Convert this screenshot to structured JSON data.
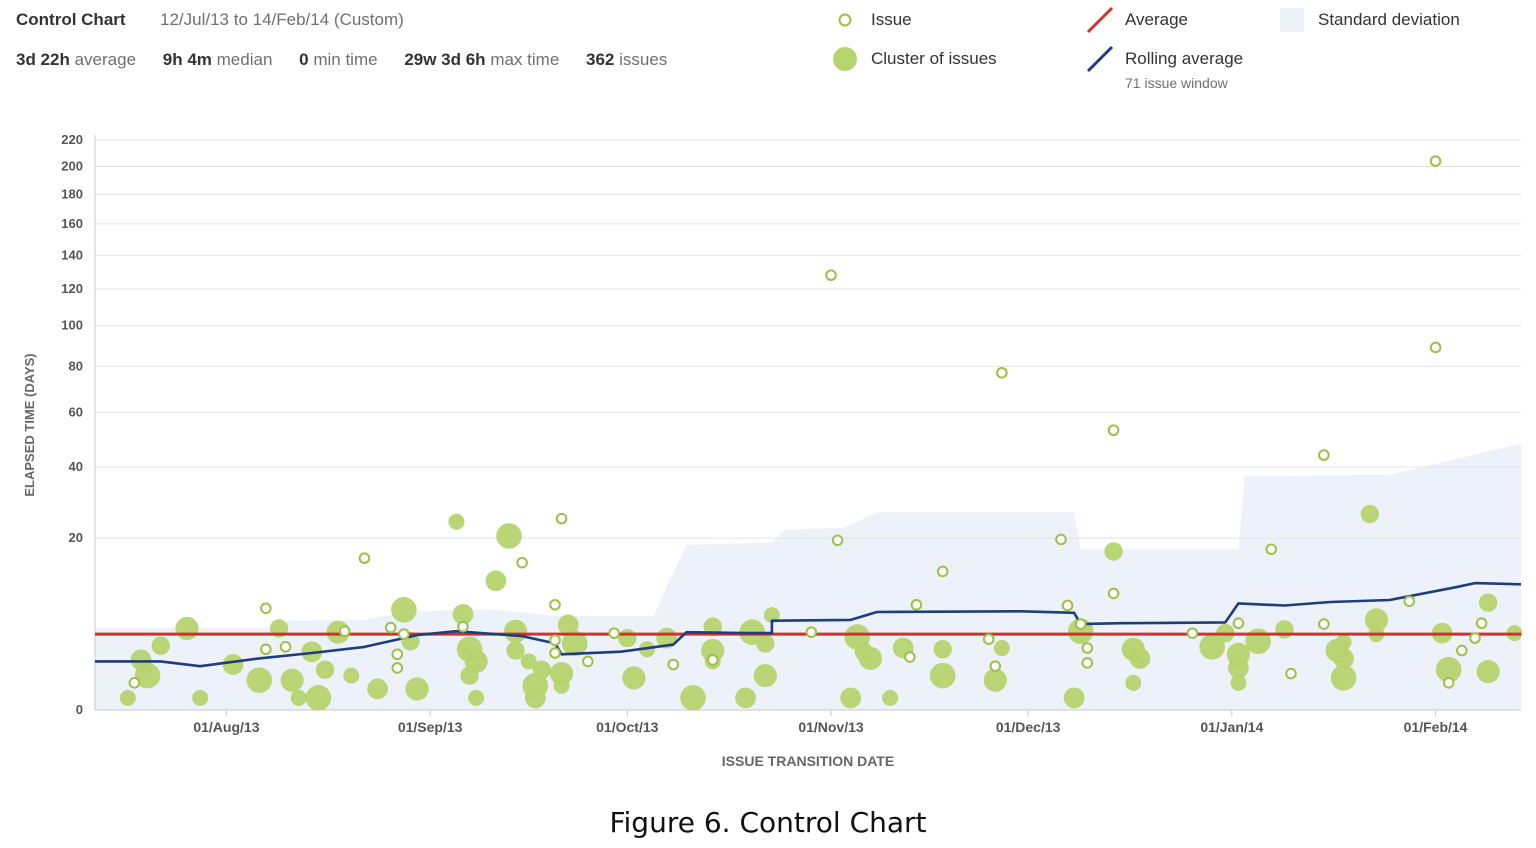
{
  "header": {
    "title": "Control Chart",
    "range": "12/Jul/13 to 14/Feb/14 (Custom)",
    "stats": [
      {
        "value": "3d 22h",
        "label": "average"
      },
      {
        "value": "9h 4m",
        "label": "median"
      },
      {
        "value": "0",
        "label": "min time"
      },
      {
        "value": "29w 3d 6h",
        "label": "max time"
      },
      {
        "value": "362",
        "label": "issues"
      }
    ]
  },
  "legend": {
    "issue": "Issue",
    "cluster": "Cluster of issues",
    "average": "Average",
    "rolling": "Rolling average",
    "rolling_sub": "71 issue window",
    "stddev": "Standard deviation"
  },
  "colors": {
    "issue": "#9cc04a",
    "cluster": "#b6d36e",
    "average": "#d0312d",
    "rolling": "#1f3d7a",
    "stddev": "#edf2fa"
  },
  "caption": "Figure 6. Control Chart",
  "chart_data": {
    "type": "scatter",
    "title": "",
    "xlabel": "ISSUE TRANSITION DATE",
    "ylabel": "ELAPSED TIME (DAYS)",
    "x_range": [
      "2013-07-12",
      "2014-02-14"
    ],
    "x_ticks": [
      {
        "date": "2013-08-01",
        "label": "01/Aug/13"
      },
      {
        "date": "2013-09-01",
        "label": "01/Sep/13"
      },
      {
        "date": "2013-10-01",
        "label": "01/Oct/13"
      },
      {
        "date": "2013-11-01",
        "label": "01/Nov/13"
      },
      {
        "date": "2013-12-01",
        "label": "01/Dec/13"
      },
      {
        "date": "2014-01-01",
        "label": "01/Jan/14"
      },
      {
        "date": "2014-02-01",
        "label": "01/Feb/14"
      }
    ],
    "y_scale": "sqrt",
    "y_ticks": [
      0,
      20,
      40,
      60,
      80,
      100,
      120,
      140,
      160,
      180,
      200,
      220
    ],
    "y_range": [
      0,
      220
    ],
    "average": 3.9,
    "rolling_average": [
      {
        "x": "2013-07-12",
        "y": 1.6
      },
      {
        "x": "2013-07-22",
        "y": 1.6
      },
      {
        "x": "2013-07-28",
        "y": 1.3
      },
      {
        "x": "2013-08-06",
        "y": 1.8
      },
      {
        "x": "2013-08-14",
        "y": 2.2
      },
      {
        "x": "2013-08-22",
        "y": 2.7
      },
      {
        "x": "2013-08-30",
        "y": 3.8
      },
      {
        "x": "2013-09-05",
        "y": 4.2
      },
      {
        "x": "2013-09-15",
        "y": 3.7
      },
      {
        "x": "2013-09-20",
        "y": 3.0
      },
      {
        "x": "2013-09-21",
        "y": 2.1
      },
      {
        "x": "2013-09-30",
        "y": 2.3
      },
      {
        "x": "2013-10-08",
        "y": 2.9
      },
      {
        "x": "2013-10-10",
        "y": 4.1
      },
      {
        "x": "2013-10-19",
        "y": 4.0
      },
      {
        "x": "2013-10-23",
        "y": 4.0
      },
      {
        "x": "2013-10-23",
        "y": 5.4
      },
      {
        "x": "2013-11-04",
        "y": 5.5
      },
      {
        "x": "2013-11-08",
        "y": 6.5
      },
      {
        "x": "2013-11-30",
        "y": 6.6
      },
      {
        "x": "2013-12-08",
        "y": 6.4
      },
      {
        "x": "2013-12-09",
        "y": 5.0
      },
      {
        "x": "2013-12-15",
        "y": 5.1
      },
      {
        "x": "2013-12-31",
        "y": 5.2
      },
      {
        "x": "2014-01-02",
        "y": 7.7
      },
      {
        "x": "2014-01-09",
        "y": 7.4
      },
      {
        "x": "2014-01-16",
        "y": 7.9
      },
      {
        "x": "2014-01-25",
        "y": 8.2
      },
      {
        "x": "2014-02-04",
        "y": 10.2
      },
      {
        "x": "2014-02-07",
        "y": 10.9
      },
      {
        "x": "2014-02-14",
        "y": 10.7
      }
    ],
    "std_band_upper": [
      {
        "x": "2013-07-12",
        "y": 4.6
      },
      {
        "x": "2013-08-09",
        "y": 4.6
      },
      {
        "x": "2013-08-10",
        "y": 5.4
      },
      {
        "x": "2013-08-22",
        "y": 5.5
      },
      {
        "x": "2013-08-28",
        "y": 6.5
      },
      {
        "x": "2013-09-10",
        "y": 6.9
      },
      {
        "x": "2013-09-20",
        "y": 6.0
      },
      {
        "x": "2013-10-05",
        "y": 6.0
      },
      {
        "x": "2013-10-10",
        "y": 18.5
      },
      {
        "x": "2013-10-23",
        "y": 19.0
      },
      {
        "x": "2013-10-25",
        "y": 22.0
      },
      {
        "x": "2013-11-03",
        "y": 22.5
      },
      {
        "x": "2013-11-08",
        "y": 26.5
      },
      {
        "x": "2013-12-08",
        "y": 26.5
      },
      {
        "x": "2013-12-09",
        "y": 17.5
      },
      {
        "x": "2014-01-02",
        "y": 17.5
      },
      {
        "x": "2014-01-03",
        "y": 37.0
      },
      {
        "x": "2014-01-25",
        "y": 37.5
      },
      {
        "x": "2014-02-14",
        "y": 48.0
      }
    ],
    "issues": [
      {
        "x": "2013-07-18",
        "y": 0.5
      },
      {
        "x": "2013-08-07",
        "y": 7.0
      },
      {
        "x": "2013-08-07",
        "y": 2.5
      },
      {
        "x": "2013-08-10",
        "y": 2.7
      },
      {
        "x": "2013-08-19",
        "y": 4.2
      },
      {
        "x": "2013-08-22",
        "y": 15.6
      },
      {
        "x": "2013-08-26",
        "y": 4.6
      },
      {
        "x": "2013-08-27",
        "y": 2.1
      },
      {
        "x": "2013-08-27",
        "y": 1.2
      },
      {
        "x": "2013-08-28",
        "y": 3.9
      },
      {
        "x": "2013-09-06",
        "y": 4.7
      },
      {
        "x": "2013-09-15",
        "y": 14.7
      },
      {
        "x": "2013-09-20",
        "y": 3.3
      },
      {
        "x": "2013-09-20",
        "y": 7.5
      },
      {
        "x": "2013-09-20",
        "y": 2.2
      },
      {
        "x": "2013-09-21",
        "y": 24.8
      },
      {
        "x": "2013-09-25",
        "y": 1.6
      },
      {
        "x": "2013-09-29",
        "y": 4.0
      },
      {
        "x": "2013-10-08",
        "y": 1.4
      },
      {
        "x": "2013-10-14",
        "y": 1.7
      },
      {
        "x": "2013-10-29",
        "y": 4.1
      },
      {
        "x": "2013-11-02",
        "y": 19.5
      },
      {
        "x": "2013-11-01",
        "y": 128.0
      },
      {
        "x": "2013-11-14",
        "y": 7.5
      },
      {
        "x": "2013-11-18",
        "y": 13.0
      },
      {
        "x": "2013-11-13",
        "y": 1.9
      },
      {
        "x": "2013-11-25",
        "y": 3.4
      },
      {
        "x": "2013-11-26",
        "y": 1.3
      },
      {
        "x": "2013-11-27",
        "y": 77.0
      },
      {
        "x": "2013-12-06",
        "y": 19.7
      },
      {
        "x": "2013-12-07",
        "y": 7.4
      },
      {
        "x": "2013-12-09",
        "y": 5.0
      },
      {
        "x": "2013-12-10",
        "y": 2.6
      },
      {
        "x": "2013-12-10",
        "y": 1.5
      },
      {
        "x": "2013-12-14",
        "y": 9.2
      },
      {
        "x": "2013-12-14",
        "y": 53.0
      },
      {
        "x": "2013-12-26",
        "y": 4.0
      },
      {
        "x": "2014-01-02",
        "y": 5.1
      },
      {
        "x": "2014-01-07",
        "y": 17.5
      },
      {
        "x": "2014-01-10",
        "y": 0.9
      },
      {
        "x": "2014-01-15",
        "y": 5.0
      },
      {
        "x": "2014-01-15",
        "y": 44.0
      },
      {
        "x": "2014-01-28",
        "y": 8.0
      },
      {
        "x": "2014-02-01",
        "y": 204.0
      },
      {
        "x": "2014-02-01",
        "y": 89.0
      },
      {
        "x": "2014-02-03",
        "y": 0.5
      },
      {
        "x": "2014-02-05",
        "y": 2.4
      },
      {
        "x": "2014-02-07",
        "y": 3.5
      },
      {
        "x": "2014-02-08",
        "y": 5.1
      }
    ],
    "clusters": [
      {
        "x": "2013-07-17",
        "y": 0.1
      },
      {
        "x": "2013-07-19",
        "y": 1.7
      },
      {
        "x": "2013-07-20",
        "y": 0.8
      },
      {
        "x": "2013-07-22",
        "y": 2.8
      },
      {
        "x": "2013-07-26",
        "y": 4.5
      },
      {
        "x": "2013-07-28",
        "y": 0.1
      },
      {
        "x": "2013-08-02",
        "y": 1.4
      },
      {
        "x": "2013-08-06",
        "y": 0.6
      },
      {
        "x": "2013-08-09",
        "y": 4.5
      },
      {
        "x": "2013-08-11",
        "y": 0.6
      },
      {
        "x": "2013-08-12",
        "y": 0.1
      },
      {
        "x": "2013-08-14",
        "y": 2.3
      },
      {
        "x": "2013-08-15",
        "y": 0.1
      },
      {
        "x": "2013-08-16",
        "y": 1.1
      },
      {
        "x": "2013-08-18",
        "y": 4.1
      },
      {
        "x": "2013-08-20",
        "y": 0.8
      },
      {
        "x": "2013-08-24",
        "y": 0.3
      },
      {
        "x": "2013-08-28",
        "y": 6.8
      },
      {
        "x": "2013-08-29",
        "y": 3.2
      },
      {
        "x": "2013-08-30",
        "y": 0.3
      },
      {
        "x": "2013-09-05",
        "y": 24.0
      },
      {
        "x": "2013-09-06",
        "y": 6.2
      },
      {
        "x": "2013-09-07",
        "y": 2.5
      },
      {
        "x": "2013-09-07",
        "y": 0.8
      },
      {
        "x": "2013-09-08",
        "y": 1.6
      },
      {
        "x": "2013-09-08",
        "y": 0.1
      },
      {
        "x": "2013-09-11",
        "y": 11.3
      },
      {
        "x": "2013-09-13",
        "y": 20.5
      },
      {
        "x": "2013-09-14",
        "y": 2.4
      },
      {
        "x": "2013-09-14",
        "y": 4.2
      },
      {
        "x": "2013-09-16",
        "y": 1.6
      },
      {
        "x": "2013-09-17",
        "y": 0.1
      },
      {
        "x": "2013-09-17",
        "y": 0.4
      },
      {
        "x": "2013-09-18",
        "y": 1.1
      },
      {
        "x": "2013-09-21",
        "y": 0.9
      },
      {
        "x": "2013-09-21",
        "y": 0.4
      },
      {
        "x": "2013-09-22",
        "y": 4.9
      },
      {
        "x": "2013-09-23",
        "y": 3.0
      },
      {
        "x": "2013-10-01",
        "y": 3.5
      },
      {
        "x": "2013-10-02",
        "y": 0.7
      },
      {
        "x": "2013-10-04",
        "y": 2.5
      },
      {
        "x": "2013-10-07",
        "y": 3.5
      },
      {
        "x": "2013-10-11",
        "y": 0.1
      },
      {
        "x": "2013-10-14",
        "y": 4.7
      },
      {
        "x": "2013-10-14",
        "y": 2.4
      },
      {
        "x": "2013-10-14",
        "y": 1.6
      },
      {
        "x": "2013-10-19",
        "y": 0.1
      },
      {
        "x": "2013-10-20",
        "y": 4.1
      },
      {
        "x": "2013-10-22",
        "y": 3.0
      },
      {
        "x": "2013-10-22",
        "y": 0.8
      },
      {
        "x": "2013-10-23",
        "y": 6.1
      },
      {
        "x": "2013-11-04",
        "y": 0.1
      },
      {
        "x": "2013-11-05",
        "y": 3.6
      },
      {
        "x": "2013-11-06",
        "y": 2.3
      },
      {
        "x": "2013-11-07",
        "y": 1.8
      },
      {
        "x": "2013-11-10",
        "y": 0.1
      },
      {
        "x": "2013-11-12",
        "y": 2.6
      },
      {
        "x": "2013-11-18",
        "y": 0.8
      },
      {
        "x": "2013-11-18",
        "y": 2.5
      },
      {
        "x": "2013-11-26",
        "y": 0.6
      },
      {
        "x": "2013-11-27",
        "y": 2.6
      },
      {
        "x": "2013-12-08",
        "y": 0.1
      },
      {
        "x": "2013-12-09",
        "y": 4.2
      },
      {
        "x": "2013-12-14",
        "y": 17.0
      },
      {
        "x": "2013-12-17",
        "y": 2.5
      },
      {
        "x": "2013-12-17",
        "y": 0.5
      },
      {
        "x": "2013-12-18",
        "y": 1.8
      },
      {
        "x": "2013-12-29",
        "y": 2.7
      },
      {
        "x": "2013-12-31",
        "y": 4.0
      },
      {
        "x": "2014-01-02",
        "y": 2.1
      },
      {
        "x": "2014-01-02",
        "y": 0.5
      },
      {
        "x": "2014-01-02",
        "y": 1.2
      },
      {
        "x": "2014-01-05",
        "y": 3.2
      },
      {
        "x": "2014-01-09",
        "y": 4.4
      },
      {
        "x": "2014-01-17",
        "y": 2.4
      },
      {
        "x": "2014-01-18",
        "y": 3.1
      },
      {
        "x": "2014-01-18",
        "y": 1.8
      },
      {
        "x": "2014-01-18",
        "y": 0.7
      },
      {
        "x": "2014-01-22",
        "y": 26.0
      },
      {
        "x": "2014-01-23",
        "y": 5.5
      },
      {
        "x": "2014-01-23",
        "y": 3.9
      },
      {
        "x": "2014-02-02",
        "y": 4.0
      },
      {
        "x": "2014-02-03",
        "y": 1.1
      },
      {
        "x": "2014-02-09",
        "y": 7.8
      },
      {
        "x": "2014-02-09",
        "y": 1.0
      },
      {
        "x": "2014-02-13",
        "y": 4.0
      }
    ]
  }
}
